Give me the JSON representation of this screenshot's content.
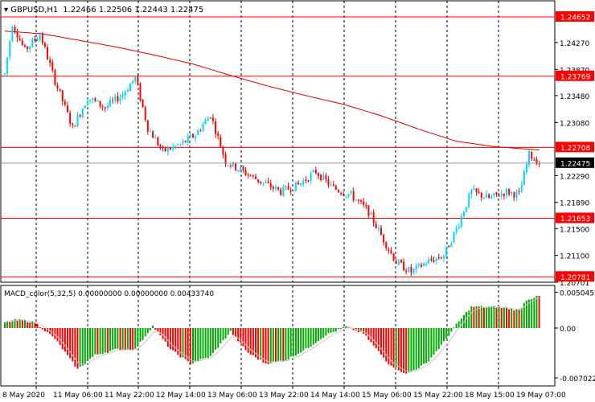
{
  "header": {
    "symbol": "GBPUSD,H1",
    "ohlc": "1.22466 1.22506 1.22443 1.22475"
  },
  "price_scale": {
    "ticks": [
      "1.24270",
      "1.23870",
      "1.23480",
      "1.23080",
      "1.22290",
      "1.21890",
      "1.21500",
      "1.21100",
      "1.20701"
    ],
    "tick_values": [
      1.2427,
      1.2387,
      1.2348,
      1.2308,
      1.2229,
      1.2189,
      1.215,
      1.211,
      1.20701
    ]
  },
  "levels": [
    {
      "label": "1.24652",
      "value": 1.24652
    },
    {
      "label": "1.23769",
      "value": 1.23769
    },
    {
      "label": "1.22708",
      "value": 1.22708
    },
    {
      "label": "1.21653",
      "value": 1.21653
    },
    {
      "label": "1.20781",
      "value": 1.20781
    }
  ],
  "current_price": {
    "label": "1.22475",
    "value": 1.22475
  },
  "macd": {
    "title": "MACD_color(5,32,5) 0.00000000 0.00000000 0.00433740",
    "ticks": [
      "0.0050455",
      "0.00",
      "-0.007022"
    ],
    "tick_values": [
      0.0050455,
      0.0,
      -0.007022
    ]
  },
  "time_axis": [
    "8 May 2020",
    "11 May 06:00",
    "11 May 22:00",
    "12 May 14:00",
    "13 May 06:00",
    "13 May 22:00",
    "14 May 14:00",
    "15 May 06:00",
    "15 May 22:00",
    "18 May 15:00",
    "19 May 07:00"
  ],
  "colors": {
    "bull": "#00d7ff",
    "bear": "#ff0000",
    "ma": "#cc0000",
    "level": "#ff0000",
    "macd_pos": "#00aa00",
    "macd_neg": "#ff0000",
    "grid": "#000000",
    "text": "#000000"
  },
  "chart_data": {
    "type": "candlestick",
    "symbol": "GBPUSD",
    "timeframe": "H1",
    "bars": 0,
    "keypoints": [
      [
        0,
        1.238
      ],
      [
        3,
        1.2455
      ],
      [
        8,
        1.2415
      ],
      [
        14,
        1.244
      ],
      [
        20,
        1.237
      ],
      [
        27,
        1.23
      ],
      [
        33,
        1.2345
      ],
      [
        40,
        1.233
      ],
      [
        47,
        1.235
      ],
      [
        52,
        1.2375
      ],
      [
        57,
        1.23
      ],
      [
        63,
        1.2265
      ],
      [
        70,
        1.2275
      ],
      [
        76,
        1.229
      ],
      [
        82,
        1.232
      ],
      [
        88,
        1.225
      ],
      [
        95,
        1.2235
      ],
      [
        102,
        1.222
      ],
      [
        110,
        1.2205
      ],
      [
        117,
        1.2215
      ],
      [
        124,
        1.2235
      ],
      [
        131,
        1.221
      ],
      [
        138,
        1.22
      ],
      [
        145,
        1.2175
      ],
      [
        150,
        1.214
      ],
      [
        156,
        1.21
      ],
      [
        162,
        1.2085
      ],
      [
        168,
        1.21
      ],
      [
        175,
        1.211
      ],
      [
        180,
        1.215
      ],
      [
        186,
        1.2205
      ],
      [
        193,
        1.2195
      ],
      [
        200,
        1.2205
      ],
      [
        205,
        1.22
      ],
      [
        209,
        1.226
      ],
      [
        213,
        1.2248
      ]
    ],
    "ma_points": [
      [
        0,
        1.2444
      ],
      [
        15,
        1.244
      ],
      [
        30,
        1.243
      ],
      [
        45,
        1.242
      ],
      [
        60,
        1.2408
      ],
      [
        75,
        1.2395
      ],
      [
        90,
        1.2378
      ],
      [
        105,
        1.2362
      ],
      [
        120,
        1.2348
      ],
      [
        135,
        1.2335
      ],
      [
        150,
        1.2318
      ],
      [
        165,
        1.2298
      ],
      [
        180,
        1.228
      ],
      [
        195,
        1.2272
      ],
      [
        213,
        1.2267
      ]
    ],
    "macd_keypoints": [
      [
        0,
        0.0008
      ],
      [
        5,
        0.0012
      ],
      [
        12,
        0.0008
      ],
      [
        20,
        -0.0015
      ],
      [
        29,
        -0.0058
      ],
      [
        36,
        -0.0038
      ],
      [
        45,
        -0.003
      ],
      [
        52,
        -0.003
      ],
      [
        59,
        0.0003
      ],
      [
        66,
        -0.003
      ],
      [
        74,
        -0.005
      ],
      [
        82,
        -0.004
      ],
      [
        90,
        -0.0005
      ],
      [
        97,
        -0.0035
      ],
      [
        104,
        -0.005
      ],
      [
        112,
        -0.0045
      ],
      [
        120,
        -0.003
      ],
      [
        128,
        -0.001
      ],
      [
        136,
        0.0002
      ],
      [
        143,
        -0.0008
      ],
      [
        153,
        -0.005
      ],
      [
        160,
        -0.0065
      ],
      [
        168,
        -0.005
      ],
      [
        175,
        -0.002
      ],
      [
        180,
        0.0005
      ],
      [
        186,
        0.003
      ],
      [
        196,
        0.003
      ],
      [
        205,
        0.0025
      ],
      [
        208,
        0.004
      ],
      [
        213,
        0.0045
      ]
    ]
  }
}
